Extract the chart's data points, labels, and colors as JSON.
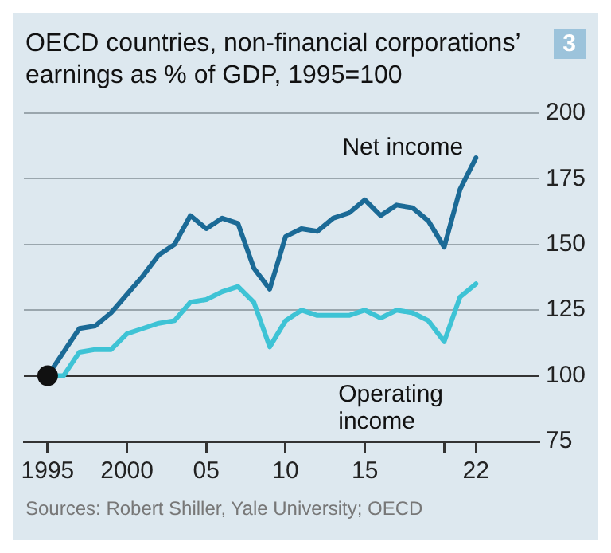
{
  "chart_data": {
    "type": "line",
    "title": "OECD countries, non-financial corporations’ earnings as % of GDP, 1995=100",
    "annotations": [
      "3",
      "Sources: Robert Shiller, Yale University; OECD"
    ],
    "x": [
      1995,
      1996,
      1997,
      1998,
      1999,
      2000,
      2001,
      2002,
      2003,
      2004,
      2005,
      2006,
      2007,
      2008,
      2009,
      2010,
      2011,
      2012,
      2013,
      2014,
      2015,
      2016,
      2017,
      2018,
      2019,
      2020,
      2021,
      2022
    ],
    "series": [
      {
        "name": "Net income",
        "color": "#1b6a96",
        "values": [
          100,
          109,
          118,
          119,
          124,
          131,
          138,
          146,
          150,
          161,
          156,
          160,
          158,
          141,
          133,
          153,
          156,
          155,
          160,
          162,
          167,
          161,
          165,
          164,
          159,
          149,
          171,
          183
        ]
      },
      {
        "name": "Operating income",
        "color": "#3ec3d5",
        "values": [
          100,
          100,
          109,
          110,
          110,
          116,
          118,
          120,
          121,
          128,
          129,
          132,
          134,
          128,
          111,
          121,
          125,
          123,
          123,
          123,
          125,
          122,
          125,
          124,
          121,
          113,
          130,
          135
        ]
      },
      {
        "type": "scatter",
        "marker": "circle",
        "color": "#111111",
        "x": [
          1995
        ],
        "values": [
          100
        ]
      }
    ],
    "marker": "none",
    "line_style": "solid",
    "xlim": [
      1993.5,
      2026
    ],
    "xticks": [
      1995,
      2000,
      {
        "value": 2005,
        "label": "05"
      },
      {
        "value": 2010,
        "label": "10"
      },
      {
        "value": 2015,
        "label": "15"
      },
      {
        "value": 2020,
        "label": null
      },
      {
        "value": 2022,
        "label": "22"
      }
    ],
    "ylim": [
      75,
      200
    ],
    "yticks": [
      75,
      100,
      125,
      150,
      175,
      200
    ],
    "ref_lines": [
      {
        "axis": "y",
        "value": 100,
        "color": "#333333"
      }
    ],
    "grid": "y",
    "legend": false
  }
}
